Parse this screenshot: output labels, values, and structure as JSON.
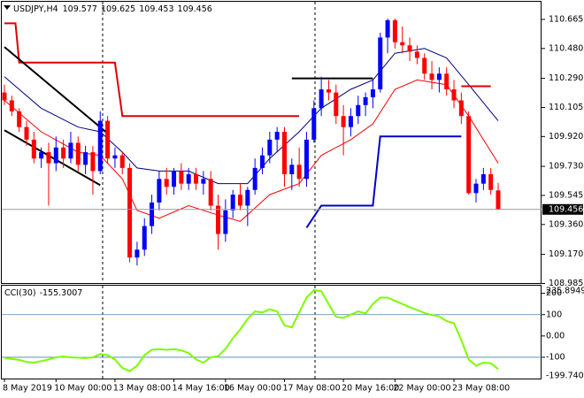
{
  "chart_data": [
    {
      "type": "candlestick",
      "title": "USDJPY,H4",
      "categories": [
        "8 May 2019",
        null,
        null,
        null,
        null,
        null,
        null,
        "10 May 00:00",
        null,
        null,
        null,
        null,
        null,
        null,
        null,
        "13 May 08:00",
        null,
        null,
        null,
        null,
        null,
        null,
        null,
        "14 May 16:00",
        null,
        null,
        null,
        null,
        null,
        null,
        "16 May 00:00",
        null,
        null,
        null,
        null,
        null,
        null,
        null,
        "17 May 08:00",
        null,
        null,
        null,
        null,
        null,
        null,
        null,
        "20 May 16:00",
        null,
        null,
        null,
        null,
        null,
        null,
        "22 May 00:00",
        null,
        null,
        null,
        null,
        null,
        null,
        null,
        "23 May 08:00",
        null,
        null,
        null,
        null,
        null,
        null
      ],
      "open": [
        110.2,
        110.15,
        110.08,
        109.98,
        109.9,
        109.78,
        109.82,
        109.75,
        109.85,
        109.78,
        109.88,
        109.74,
        109.82,
        109.7,
        110.02,
        109.78,
        109.8,
        109.72,
        109.15,
        109.2,
        109.35,
        109.5,
        109.65,
        109.6,
        109.7,
        109.62,
        109.68,
        109.62,
        109.65,
        109.48,
        109.3,
        109.45,
        109.55,
        109.48,
        109.58,
        109.72,
        109.8,
        109.9,
        109.95,
        109.68,
        109.74,
        109.65,
        109.9,
        110.1,
        110.22,
        110.2,
        110.05,
        109.98,
        110.05,
        110.12,
        110.17,
        110.22,
        110.55,
        110.66,
        110.52,
        110.5,
        110.46,
        110.42,
        110.32,
        110.28,
        110.32,
        110.22,
        110.15,
        110.05,
        109.56,
        109.62,
        109.68,
        109.577
      ],
      "high": [
        110.25,
        110.18,
        110.1,
        110.02,
        109.95,
        109.85,
        109.88,
        109.92,
        109.9,
        109.95,
        109.92,
        109.86,
        109.86,
        110.08,
        110.05,
        109.85,
        109.82,
        109.75,
        109.25,
        109.4,
        109.55,
        109.7,
        109.72,
        109.72,
        109.75,
        109.72,
        109.72,
        109.7,
        109.7,
        109.55,
        109.52,
        109.58,
        109.62,
        109.6,
        109.78,
        109.85,
        109.95,
        109.98,
        109.98,
        109.78,
        109.85,
        109.95,
        110.15,
        110.3,
        110.28,
        110.25,
        110.12,
        110.1,
        110.18,
        110.2,
        110.28,
        110.58,
        110.67,
        110.67,
        110.62,
        110.55,
        110.5,
        110.45,
        110.4,
        110.36,
        110.36,
        110.28,
        110.2,
        110.08,
        109.65,
        109.72,
        109.72,
        109.625
      ],
      "low": [
        110.12,
        110.05,
        109.95,
        109.86,
        109.75,
        109.72,
        109.48,
        109.7,
        109.72,
        109.75,
        109.7,
        109.68,
        109.55,
        109.68,
        109.75,
        109.72,
        109.68,
        109.12,
        109.1,
        109.16,
        109.3,
        109.45,
        109.55,
        109.55,
        109.58,
        109.58,
        109.58,
        109.55,
        109.45,
        109.2,
        109.25,
        109.4,
        109.45,
        109.35,
        109.55,
        109.68,
        109.75,
        109.82,
        109.6,
        109.58,
        109.6,
        109.6,
        109.88,
        110.05,
        110.15,
        110.0,
        109.8,
        109.92,
        110.0,
        110.05,
        110.1,
        110.2,
        110.45,
        110.48,
        110.45,
        110.4,
        110.38,
        110.28,
        110.22,
        110.2,
        110.18,
        110.1,
        110.0,
        109.55,
        109.5,
        109.58,
        109.55,
        109.453
      ],
      "close": [
        110.15,
        110.08,
        109.98,
        109.9,
        109.78,
        109.82,
        109.75,
        109.85,
        109.78,
        109.88,
        109.74,
        109.82,
        109.7,
        110.02,
        109.78,
        109.8,
        109.72,
        109.15,
        109.2,
        109.35,
        109.5,
        109.65,
        109.6,
        109.7,
        109.62,
        109.68,
        109.62,
        109.65,
        109.48,
        109.3,
        109.45,
        109.55,
        109.48,
        109.58,
        109.72,
        109.8,
        109.9,
        109.95,
        109.68,
        109.74,
        109.65,
        109.9,
        110.1,
        110.22,
        110.2,
        110.05,
        109.98,
        110.05,
        110.12,
        110.17,
        110.22,
        110.55,
        110.66,
        110.52,
        110.5,
        110.46,
        110.42,
        110.32,
        110.28,
        110.32,
        110.22,
        110.15,
        110.05,
        109.56,
        109.62,
        109.68,
        109.58,
        109.456
      ],
      "up_color": "#0000ff",
      "down_color": "#ff0000",
      "overlays": [
        {
          "color": "#000080",
          "width": 1,
          "x": [
            0,
            5,
            10,
            13,
            16,
            18,
            21,
            25,
            29,
            33,
            36,
            40,
            43,
            47,
            50,
            53,
            57,
            60,
            63,
            67
          ],
          "values": [
            110.3,
            110.1,
            109.98,
            109.95,
            109.82,
            109.72,
            109.7,
            109.7,
            109.62,
            109.62,
            109.78,
            109.95,
            110.1,
            110.22,
            110.28,
            110.45,
            110.48,
            110.42,
            110.25,
            110.02
          ]
        },
        {
          "color": "#ff0000",
          "width": 1,
          "x": [
            0,
            5,
            10,
            13,
            16,
            18,
            21,
            25,
            29,
            32,
            36,
            40,
            43,
            47,
            50,
            53,
            56,
            60,
            63,
            67
          ],
          "values": [
            110.15,
            109.95,
            109.82,
            109.8,
            109.65,
            109.45,
            109.4,
            109.48,
            109.42,
            109.38,
            109.55,
            109.62,
            109.8,
            109.9,
            110.0,
            110.22,
            110.28,
            110.25,
            110.05,
            109.75
          ]
        },
        {
          "color": "#dd0000",
          "width": 2,
          "x": [
            0,
            1.5,
            2,
            15,
            16,
            40
          ],
          "values": [
            110.64,
            110.64,
            110.39,
            110.39,
            110.05,
            110.05
          ]
        },
        {
          "color": "#dd0000",
          "width": 2,
          "x": [
            62,
            66
          ],
          "values": [
            110.24,
            110.24
          ]
        },
        {
          "color": "#0000cc",
          "width": 2,
          "x": [
            41,
            43,
            50,
            51,
            62
          ],
          "values": [
            109.34,
            109.48,
            109.48,
            109.92,
            109.92
          ]
        },
        {
          "color": "#000000",
          "width": 2,
          "x": [
            0,
            14
          ],
          "values": [
            110.49,
            109.94
          ]
        },
        {
          "color": "#000000",
          "width": 2,
          "x": [
            0,
            13
          ],
          "values": [
            109.96,
            109.61
          ]
        },
        {
          "color": "#000000",
          "width": 2,
          "x": [
            39,
            50
          ],
          "values": [
            110.29,
            110.29
          ]
        }
      ],
      "ylim": [
        108.982,
        110.783
      ],
      "yticks": [
        110.665,
        {
          "value": 110.48,
          "label": "110.480"
        },
        {
          "value": 110.29,
          "label": "110.290"
        },
        110.105,
        {
          "value": 109.92,
          "label": "109.920"
        },
        {
          "value": 109.73,
          "label": "109.730"
        },
        109.545,
        {
          "value": 109.36,
          "label": "109.360"
        },
        {
          "value": 109.17,
          "label": "109.170"
        },
        108.985
      ]
    },
    {
      "type": "line",
      "title": "CCI(30)",
      "color": "#7cfc00",
      "level_color": "#4682b4",
      "values": [
        -104,
        -108,
        -112,
        -122,
        -125,
        -118,
        -110,
        -100,
        -96,
        -100,
        -102,
        -104,
        -100,
        -85,
        -90,
        -110,
        -150,
        -165,
        -140,
        -90,
        -65,
        -62,
        -65,
        -62,
        -68,
        -80,
        -110,
        -125,
        -100,
        -95,
        -60,
        -10,
        30,
        80,
        115,
        110,
        125,
        115,
        50,
        40,
        110,
        180,
        215,
        210,
        150,
        90,
        85,
        100,
        115,
        105,
        150,
        180,
        180,
        165,
        150,
        135,
        122,
        108,
        98,
        92,
        70,
        60,
        -20,
        -110,
        -140,
        -125,
        -128,
        -155.3007
      ],
      "ylim": [
        -199.7404,
        235.8949
      ],
      "yticks": [
        200,
        100,
        {
          "value": 0,
          "label": "0.00"
        },
        -100
      ]
    }
  ]
}
